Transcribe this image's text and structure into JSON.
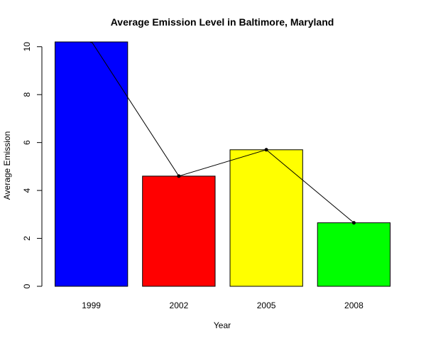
{
  "chart_data": {
    "type": "bar",
    "title": "Average Emission Level in Baltimore, Maryland",
    "xlabel": "Year",
    "ylabel": "Average Emission",
    "categories": [
      "1999",
      "2002",
      "2005",
      "2008"
    ],
    "values": [
      10.23,
      4.6,
      5.7,
      2.65
    ],
    "bar_colors": [
      "#0000ff",
      "#ff0000",
      "#ffff00",
      "#00ff00"
    ],
    "ylim": [
      0,
      10.2
    ],
    "yticks": [
      0,
      2,
      4,
      6,
      8,
      10
    ],
    "overlay_line": true,
    "grid": false
  }
}
